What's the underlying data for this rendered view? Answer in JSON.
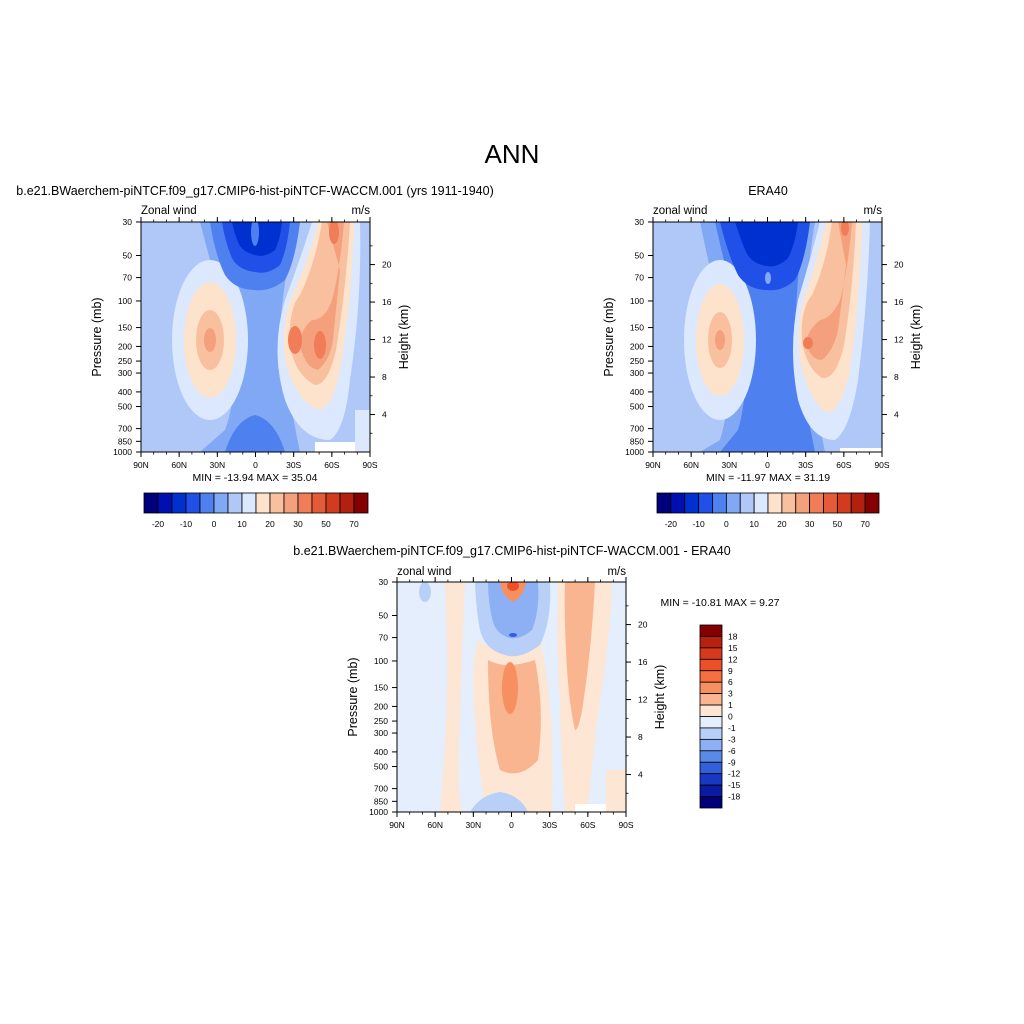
{
  "figure": {
    "title": "ANN"
  },
  "chart_data": [
    {
      "type": "heatmap",
      "title": "b.e21.BWaerchem-piNTCF.f09_g17.CMIP6-hist-piNTCF-WACCM.001 (yrs 1911-1940)",
      "left_label": "Zonal wind",
      "right_label": "m/s",
      "ylabel": "Pressure (mb)",
      "ylabel_right": "Height (km)",
      "x_ticks": [
        "90N",
        "60N",
        "30N",
        "0",
        "30S",
        "60S",
        "90S"
      ],
      "y_ticks": [
        "30",
        "50",
        "70",
        "100",
        "150",
        "200",
        "250",
        "300",
        "400",
        "500",
        "700",
        "850",
        "1000"
      ],
      "y2_ticks": [
        "20",
        "16",
        "12",
        "8",
        "4"
      ],
      "stats": "MIN = -13.94  MAX =  35.04",
      "min": -13.94,
      "max": 35.04,
      "colorbar_orientation": "horizontal",
      "colorbar_labels": [
        "-20",
        "-10",
        "0",
        "10",
        "20",
        "30",
        "50",
        "70"
      ],
      "colors": [
        "#00007a",
        "#0010b0",
        "#0030d0",
        "#2050e8",
        "#4f80f0",
        "#80a8f5",
        "#b0c8f8",
        "#dbe8fd",
        "#fde2cc",
        "#f9c0a0",
        "#f5a07c",
        "#f07c58",
        "#e55a38",
        "#d13c20",
        "#b22010",
        "#840000"
      ],
      "features": [
        {
          "lat": 30,
          "p": 200,
          "value": 28
        },
        {
          "lat": -30,
          "p": 200,
          "value": 35
        },
        {
          "lat": -50,
          "p": 200,
          "value": 30
        },
        {
          "lat": -60,
          "p": 40,
          "value": 30
        },
        {
          "lat": 0,
          "p": 50,
          "value": -14
        },
        {
          "lat": 15,
          "p": 40,
          "value": -12
        }
      ]
    },
    {
      "type": "heatmap",
      "title": "ERA40",
      "left_label": "zonal wind",
      "right_label": "m/s",
      "ylabel": "Pressure (mb)",
      "ylabel_right": "Height (km)",
      "x_ticks": [
        "90N",
        "60N",
        "30N",
        "0",
        "30S",
        "60S",
        "90S"
      ],
      "y_ticks": [
        "30",
        "50",
        "70",
        "100",
        "150",
        "200",
        "250",
        "300",
        "400",
        "500",
        "700",
        "850",
        "1000"
      ],
      "y2_ticks": [
        "20",
        "16",
        "12",
        "8",
        "4"
      ],
      "stats": "MIN = -11.97  MAX =  31.19",
      "min": -11.97,
      "max": 31.19,
      "colorbar_orientation": "horizontal",
      "colorbar_labels": [
        "-20",
        "-10",
        "0",
        "10",
        "20",
        "30",
        "50",
        "70"
      ],
      "colors": [
        "#00007a",
        "#0010b0",
        "#0030d0",
        "#2050e8",
        "#4f80f0",
        "#80a8f5",
        "#b0c8f8",
        "#dbe8fd",
        "#fde2cc",
        "#f9c0a0",
        "#f5a07c",
        "#f07c58",
        "#e55a38",
        "#d13c20",
        "#b22010",
        "#840000"
      ],
      "features": [
        {
          "lat": 30,
          "p": 200,
          "value": 26
        },
        {
          "lat": -30,
          "p": 200,
          "value": 31
        },
        {
          "lat": -60,
          "p": 40,
          "value": 25
        },
        {
          "lat": 0,
          "p": 50,
          "value": -12
        }
      ]
    },
    {
      "type": "heatmap",
      "title": "b.e21.BWaerchem-piNTCF.f09_g17.CMIP6-hist-piNTCF-WACCM.001 - ERA40",
      "left_label": "zonal wind",
      "right_label": "m/s",
      "ylabel": "Pressure (mb)",
      "ylabel_right": "Height (km)",
      "x_ticks": [
        "90N",
        "60N",
        "30N",
        "0",
        "30S",
        "60S",
        "90S"
      ],
      "y_ticks": [
        "30",
        "50",
        "70",
        "100",
        "150",
        "200",
        "250",
        "300",
        "400",
        "500",
        "700",
        "850",
        "1000"
      ],
      "y2_ticks": [
        "20",
        "16",
        "12",
        "8",
        "4"
      ],
      "stats": "MIN = -10.81  MAX =   9.27",
      "min": -10.81,
      "max": 9.27,
      "colorbar_orientation": "vertical",
      "colorbar_labels": [
        "18",
        "15",
        "12",
        "9",
        "6",
        "3",
        "1",
        "0",
        "-1",
        "-3",
        "-6",
        "-9",
        "-12",
        "-15",
        "-18"
      ],
      "colors": [
        "#840000",
        "#b82010",
        "#d63a1c",
        "#ec5028",
        "#f5703e",
        "#f79060",
        "#f9b490",
        "#fde6d4",
        "#e4eefd",
        "#b8cff8",
        "#8cb0f3",
        "#5a8ae8",
        "#3060dc",
        "#1838c4",
        "#0a1aa4",
        "#00007a"
      ],
      "features": [
        {
          "lat": 0,
          "p": 30,
          "value": 9
        },
        {
          "lat": 0,
          "p": 150,
          "value": 3
        },
        {
          "lat": 0,
          "p": 50,
          "value": -6
        },
        {
          "lat": -45,
          "p": 100,
          "value": 3
        }
      ]
    }
  ]
}
